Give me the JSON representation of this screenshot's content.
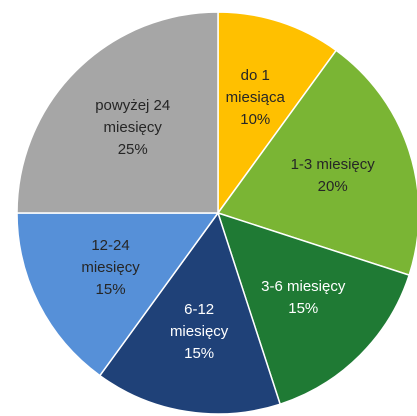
{
  "chart_data": {
    "type": "pie",
    "categories": [
      "do 1 miesiąca",
      "1-3 miesięcy",
      "3-6 miesięcy",
      "6-12 miesięcy",
      "12-24 miesięcy",
      "powyżej 24 miesięcy"
    ],
    "values": [
      10,
      20,
      15,
      15,
      15,
      25
    ],
    "value_labels": [
      "10%",
      "20%",
      "15%",
      "15%",
      "15%",
      "25%"
    ],
    "colors": [
      "#ffc000",
      "#7ab534",
      "#1f7a34",
      "#1f4178",
      "#5690d8",
      "#a6a6a6"
    ]
  }
}
